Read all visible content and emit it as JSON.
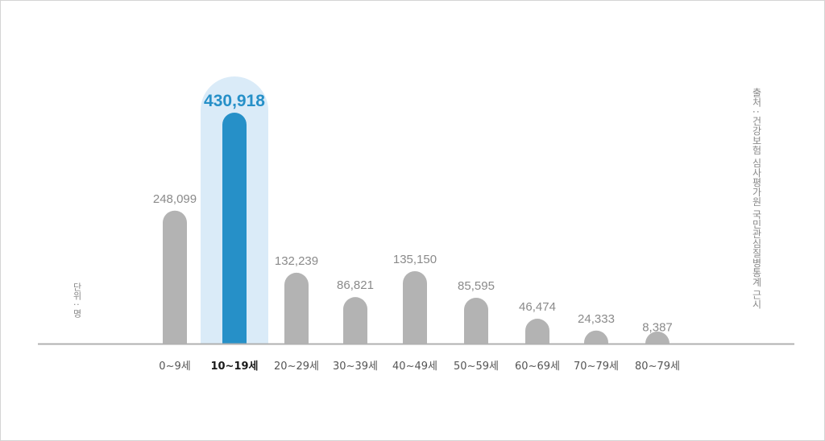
{
  "unit_label": "단위 : 명",
  "source_label": "출처 : 건강보험 심사평가원 국민관심질병통계 근시",
  "colors": {
    "bar": "#b3b3b3",
    "highlight_bar": "#2690c8",
    "highlight_bg": "#daebf8",
    "value_text": "#8a8a8a",
    "highlight_text": "#2690c8",
    "axis_text": "#555555",
    "highlight_axis_text": "#1a1a1a",
    "axis_line": "#b0b0b0"
  },
  "chart_data": {
    "type": "bar",
    "categories": [
      "0~9세",
      "10~19세",
      "20~29세",
      "30~39세",
      "40~49세",
      "50~59세",
      "60~69세",
      "70~79세",
      "80~79세"
    ],
    "values": [
      248099,
      430918,
      132239,
      86821,
      135150,
      85595,
      46474,
      24333,
      8387
    ],
    "value_labels": [
      "248,099",
      "430,918",
      "132,239",
      "86,821",
      "135,150",
      "85,595",
      "46,474",
      "24,333",
      "8,387"
    ],
    "highlight_index": 1,
    "ylim": [
      0,
      470000
    ],
    "grid": false,
    "legend": "none"
  }
}
